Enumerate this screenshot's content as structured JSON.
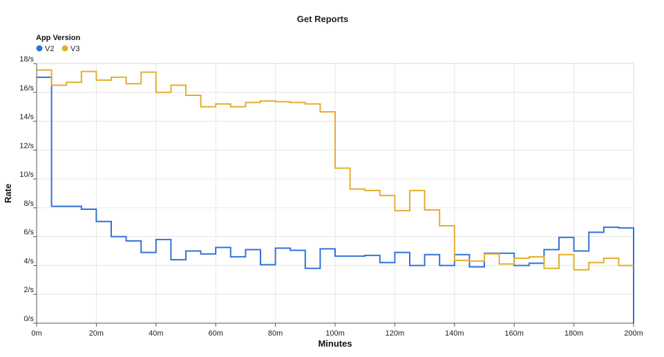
{
  "chart_data": {
    "type": "line",
    "step": true,
    "title": "Get Reports",
    "xlabel": "Minutes",
    "ylabel": "Rate",
    "legend_title": "App Version",
    "legend_placement": "top-left",
    "grid": true,
    "xlim": [
      0,
      200
    ],
    "ylim": [
      0,
      18
    ],
    "x_ticks": [
      0,
      20,
      40,
      60,
      80,
      100,
      120,
      140,
      160,
      180,
      200
    ],
    "x_tick_labels": [
      "0m",
      "20m",
      "40m",
      "60m",
      "80m",
      "100m",
      "120m",
      "140m",
      "160m",
      "180m",
      "200m"
    ],
    "y_ticks": [
      0,
      2,
      4,
      6,
      8,
      10,
      12,
      14,
      16,
      18
    ],
    "y_tick_labels": [
      "0/s",
      "2/s",
      "4/s",
      "6/s",
      "8/s",
      "10/s",
      "12/s",
      "14/s",
      "16/s",
      "18/s"
    ],
    "x": [
      0,
      5,
      10,
      15,
      20,
      25,
      30,
      35,
      40,
      45,
      50,
      55,
      60,
      65,
      70,
      75,
      80,
      85,
      90,
      95,
      100,
      105,
      110,
      115,
      120,
      125,
      130,
      135,
      140,
      145,
      150,
      155,
      160,
      165,
      170,
      175,
      180,
      185,
      190,
      195
    ],
    "series": [
      {
        "name": "V2",
        "color": "#2f72d9",
        "values": [
          17.05,
          8.1,
          8.1,
          7.9,
          7.05,
          6.0,
          5.7,
          4.9,
          5.8,
          4.4,
          5.0,
          4.8,
          5.25,
          4.6,
          5.1,
          4.05,
          5.2,
          5.05,
          3.8,
          5.15,
          4.65,
          4.65,
          4.7,
          4.2,
          4.9,
          4.0,
          4.75,
          4.0,
          4.75,
          3.9,
          4.85,
          4.85,
          4.0,
          4.15,
          5.1,
          5.95,
          5.0,
          6.3,
          6.65,
          6.6
        ],
        "end_value": 0
      },
      {
        "name": "V3",
        "color": "#e3ae2c",
        "values": [
          17.55,
          16.5,
          16.7,
          17.45,
          16.85,
          17.05,
          16.6,
          17.4,
          16.0,
          16.5,
          15.8,
          15.0,
          15.2,
          15.0,
          15.3,
          15.4,
          15.35,
          15.3,
          15.2,
          14.65,
          10.75,
          9.3,
          9.2,
          8.85,
          7.8,
          9.2,
          7.85,
          6.75,
          4.35,
          4.3,
          4.8,
          4.1,
          4.5,
          4.6,
          3.8,
          4.75,
          3.7,
          4.2,
          4.5,
          4.0
        ]
      }
    ]
  }
}
